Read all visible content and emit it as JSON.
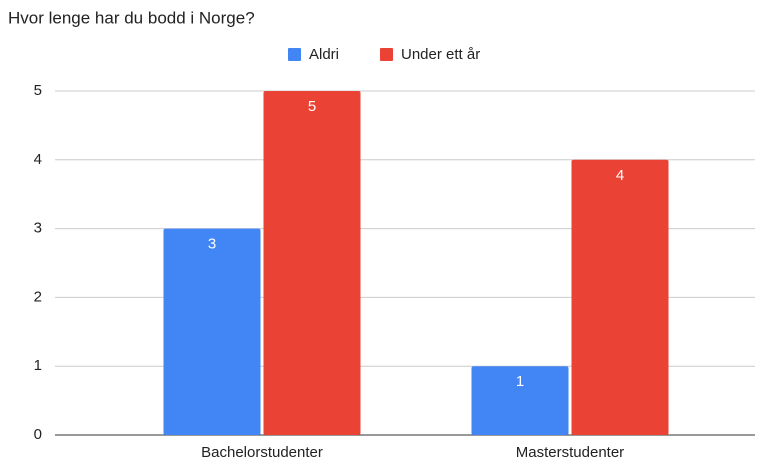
{
  "chart_data": {
    "type": "bar",
    "title": "Hvor lenge har du bodd i Norge?",
    "categories": [
      "Bachelorstudenter",
      "Masterstudenter"
    ],
    "series": [
      {
        "name": "Aldri",
        "color": "#4285f4",
        "values": [
          3,
          1
        ]
      },
      {
        "name": "Under ett år",
        "color": "#ea4335",
        "values": [
          5,
          4
        ]
      }
    ],
    "ylim": [
      0,
      5
    ],
    "yticks": [
      0,
      1,
      2,
      3,
      4,
      5
    ],
    "grid": true,
    "legend": "top"
  }
}
